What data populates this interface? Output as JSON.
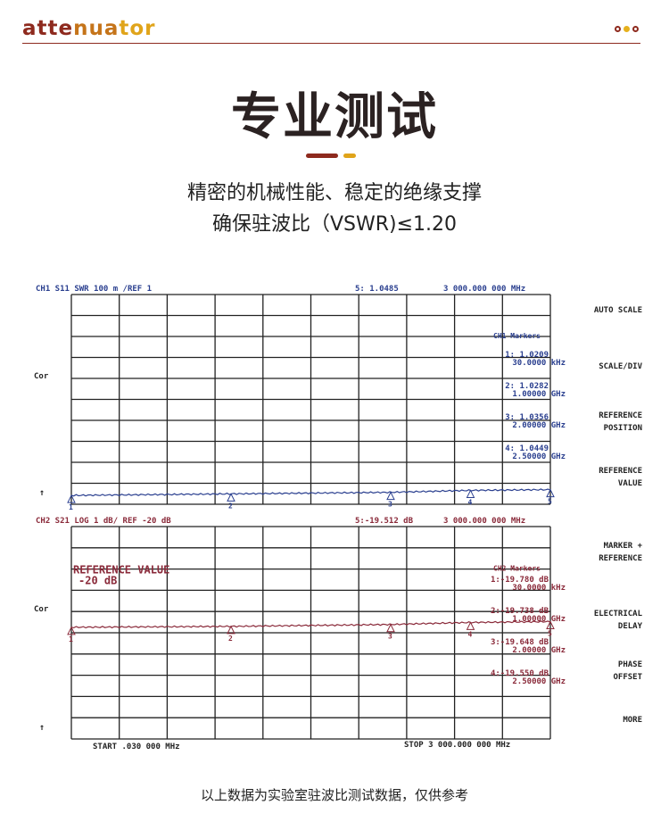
{
  "brand": {
    "text": "attenuator",
    "colors": [
      "#8e2a1e",
      "#c5741a",
      "#e0a41a"
    ]
  },
  "heading": "专业测试",
  "subtitle_line1": "精密的机械性能、稳定的绝缘支撑",
  "subtitle_line2": "确保驻波比（VSWR)≤1.20",
  "footnote": "以上数据为实验室驻波比测试数据，仅供参考",
  "softkeys": [
    [
      "AUTO SCALE"
    ],
    [
      "SCALE/DIV"
    ],
    [
      "REFERENCE",
      "POSITION"
    ],
    [
      "REFERENCE",
      "VALUE"
    ],
    [
      "MARKER +",
      "REFERENCE"
    ],
    [
      "ELECTRICAL",
      "DELAY"
    ],
    [
      "PHASE",
      "OFFSET"
    ],
    [
      "MORE"
    ]
  ],
  "chart_data": [
    {
      "type": "line",
      "channel": "CH1",
      "param": "S11",
      "format": "SWR",
      "scale": "100 m /REF 1",
      "ref_value": 1,
      "per_div": 0.1,
      "active_marker": "5: 1.0485",
      "active_freq": "3 000.000 000 MHz",
      "side_label": "Cor",
      "markers_title": "CH1 Markers",
      "color": "#2a3f8f",
      "x_range_mhz": [
        0.03,
        3000
      ],
      "grid": true,
      "markers": [
        {
          "id": "1",
          "value": "1.0209",
          "freq": "30.0000 kHz",
          "x": 0.03,
          "y": 1.0209
        },
        {
          "id": "2",
          "value": "1.0282",
          "freq": "1.00000 GHz",
          "x": 1000,
          "y": 1.0282
        },
        {
          "id": "3",
          "value": "1.0356",
          "freq": "2.00000 GHz",
          "x": 2000,
          "y": 1.0356
        },
        {
          "id": "4",
          "value": "1.0449",
          "freq": "2.50000 GHz",
          "x": 2500,
          "y": 1.0449
        },
        {
          "id": "5",
          "x": 3000,
          "y": 1.0485
        }
      ]
    },
    {
      "type": "line",
      "channel": "CH2",
      "param": "S21",
      "format": "LOG",
      "scale": "1 dB/ REF -20 dB",
      "ref_value": -20,
      "per_div": 1,
      "active_marker": "5:-19.512 dB",
      "active_freq": "3 000.000 000 MHz",
      "side_label": "Cor",
      "markers_title": "CH2 Markers",
      "color": "#8a2a3a",
      "annotation": [
        "REFERENCE VALUE",
        "-20 dB"
      ],
      "x_range_mhz": [
        0.03,
        3000
      ],
      "grid": true,
      "markers": [
        {
          "id": "1",
          "value": "-19.780 dB",
          "freq": "30.0000 kHz",
          "x": 0.03,
          "y": -19.78
        },
        {
          "id": "2",
          "value": "-19.738 dB",
          "freq": "1.00000 GHz",
          "x": 1000,
          "y": -19.738
        },
        {
          "id": "3",
          "value": "-19.648 dB",
          "freq": "2.00000 GHz",
          "x": 2000,
          "y": -19.648
        },
        {
          "id": "4",
          "value": "-19.550 dB",
          "freq": "2.50000 GHz",
          "x": 2500,
          "y": -19.55
        },
        {
          "id": "5",
          "x": 3000,
          "y": -19.512
        }
      ]
    }
  ],
  "start_label": "START  .030 000 MHz",
  "stop_label": "STOP 3 000.000 000 MHz"
}
